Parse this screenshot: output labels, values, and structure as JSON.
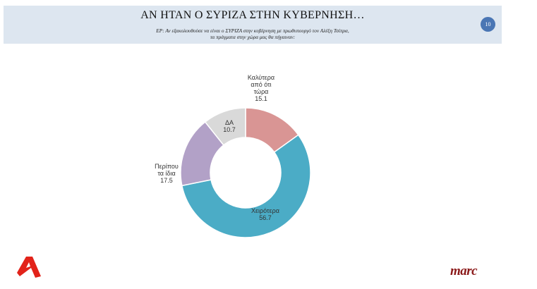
{
  "header": {
    "title": "ΑΝ ΗΤΑΝ Ο ΣΥΡΙΖΑ ΣΤΗΝ ΚΥΒΕΡΝΗΣΗ…",
    "question_line1": "ΕΡ: Αν εξακολουθούσε να είναι ο ΣΥΡΙΖΑ στην κυβέρνηση με πρωθυπουργό τον Αλέξη Τσίπρα,",
    "question_line2": "τα πράγματα στην χώρα μας θα πήγαιναν:",
    "page_number": "10"
  },
  "logos": {
    "marc": "marc",
    "alpha_color": "#e2231a"
  },
  "chart_data": {
    "type": "pie",
    "variant": "donut",
    "title": "",
    "categories": [
      "Καλύτερα από ότι τώρα",
      "Χειρότερα",
      "Περίπου τα ίδια",
      "ΔΑ"
    ],
    "values": [
      15.1,
      56.7,
      17.5,
      10.7
    ],
    "colors": [
      "#d99594",
      "#4bacc6",
      "#b2a1c7",
      "#d9d9d9"
    ],
    "label_lines": [
      [
        "Καλύτερα",
        "από ότι",
        "τώρα",
        "15.1"
      ],
      [
        "Χειρότερα",
        "56.7"
      ],
      [
        "Περίπου",
        "τα ίδια",
        "17.5"
      ],
      [
        "ΔΑ",
        "10.7"
      ]
    ],
    "start": "12 o'clock",
    "direction": "clockwise",
    "legend": "none"
  }
}
